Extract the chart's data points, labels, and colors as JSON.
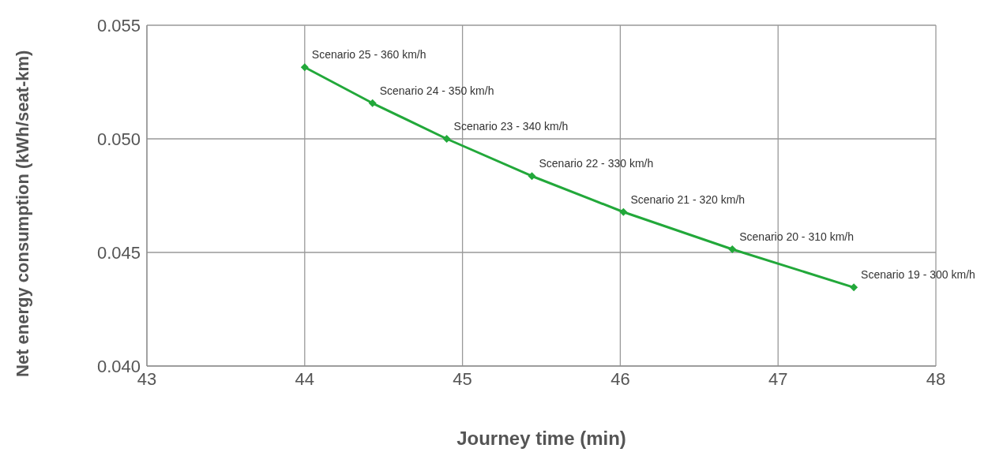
{
  "chart_data": {
    "type": "line",
    "xlabel": "Journey time (min)",
    "ylabel": "Net energy consumption (kWh/seat-km)",
    "x": [
      44.0,
      44.43,
      44.9,
      45.44,
      46.02,
      46.71,
      47.48
    ],
    "series": [
      {
        "color": "#22a83a",
        "values": [
          0.05315,
          0.05157,
          0.05,
          0.04836,
          0.04678,
          0.04514,
          0.04346
        ]
      }
    ],
    "xlim": [
      43,
      48
    ],
    "xticks": [
      43,
      44,
      45,
      46,
      47,
      48
    ],
    "ylim": [
      0.04,
      0.055
    ],
    "yticks": [
      {
        "value": 0.04,
        "label": "0.040"
      },
      {
        "value": 0.045,
        "label": "0.045"
      },
      {
        "value": 0.05,
        "label": "0.050"
      },
      {
        "value": 0.055,
        "label": "0.055"
      }
    ],
    "grid": true,
    "marker": "diamond",
    "line_style": "solid",
    "annotations": [
      {
        "text": "Scenario 25 - 360 km/h",
        "x": 44.0,
        "y": 0.05315
      },
      {
        "text": "Scenario 24 - 350 km/h",
        "x": 44.43,
        "y": 0.05157
      },
      {
        "text": "Scenario 23 - 340 km/h",
        "x": 44.9,
        "y": 0.05
      },
      {
        "text": "Scenario 22 - 330 km/h",
        "x": 45.44,
        "y": 0.04836
      },
      {
        "text": "Scenario 21 - 320 km/h",
        "x": 46.02,
        "y": 0.04678
      },
      {
        "text": "Scenario 20 - 310 km/h",
        "x": 46.71,
        "y": 0.04514
      },
      {
        "text": "Scenario 19 - 300 km/h",
        "x": 47.48,
        "y": 0.04346
      }
    ]
  }
}
